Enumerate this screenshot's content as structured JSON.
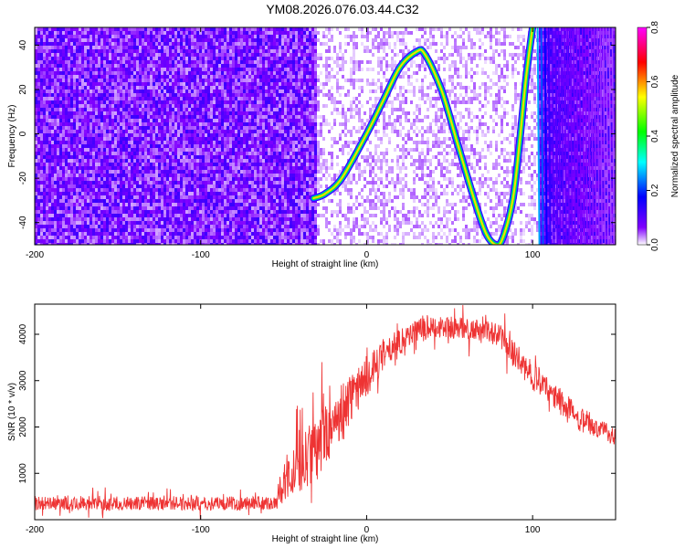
{
  "title": "YM08.2026.076.03.44.C32",
  "chart_data": [
    {
      "type": "heatmap",
      "xlabel": "Height of straight line (km)",
      "ylabel": "Frequency (Hz)",
      "xlim": [
        -200,
        150
      ],
      "ylim": [
        -50,
        48
      ],
      "xticks": [
        -200,
        -100,
        0,
        100
      ],
      "yticks": [
        -40,
        -20,
        0,
        20,
        40
      ],
      "grid": false,
      "colorbar": {
        "label": "Normalized spectral amplitude",
        "range": [
          0.0,
          0.8
        ],
        "ticks": [
          0.0,
          0.2,
          0.4,
          0.6,
          0.8
        ],
        "tick_labels": [
          "0.0",
          "0.2",
          "0.4",
          "0.6",
          "0.8"
        ],
        "colors": [
          "#ffffff",
          "#8000ff",
          "#0000ff",
          "#00ffff",
          "#00ff00",
          "#ffff00",
          "#ff0000",
          "#ff00ff"
        ]
      },
      "noise_onset_x": -30,
      "tone_curve": {
        "x": [
          -32,
          -25,
          -15,
          0,
          10,
          20,
          30,
          35,
          45,
          55,
          65,
          72,
          78,
          82,
          88,
          92,
          96,
          100
        ],
        "freq": [
          -29,
          -27,
          -20,
          0,
          15,
          30,
          37,
          36,
          20,
          -5,
          -30,
          -45,
          -50,
          -47,
          -30,
          -5,
          25,
          48
        ],
        "amplitude": 0.62
      },
      "high_x_stripes_from": 103
    },
    {
      "type": "line",
      "xlabel": "Height of straight line (km)",
      "ylabel": "SNR (10 * v/v)",
      "xlim": [
        -200,
        150
      ],
      "ylim": [
        0,
        4650
      ],
      "xticks": [
        -200,
        -100,
        0,
        100
      ],
      "yticks": [
        1000,
        2000,
        3000,
        4000
      ],
      "grid": false,
      "series": [
        {
          "color": "#ee3333",
          "x": [
            -200,
            -150,
            -100,
            -55,
            -50,
            -40,
            -30,
            -20,
            -10,
            0,
            10,
            20,
            30,
            40,
            50,
            60,
            70,
            80,
            90,
            100,
            110,
            120,
            130,
            140,
            150
          ],
          "y": [
            350,
            350,
            350,
            360,
            800,
            1200,
            1600,
            2100,
            2600,
            3100,
            3500,
            3850,
            4100,
            4200,
            4150,
            4100,
            4050,
            4000,
            3500,
            3100,
            2750,
            2450,
            2200,
            1950,
            1800
          ],
          "spread": [
            150,
            150,
            150,
            150,
            500,
            650,
            700,
            650,
            550,
            450,
            350,
            300,
            250,
            250,
            250,
            250,
            250,
            250,
            300,
            300,
            280,
            260,
            240,
            220,
            200
          ]
        }
      ]
    }
  ]
}
